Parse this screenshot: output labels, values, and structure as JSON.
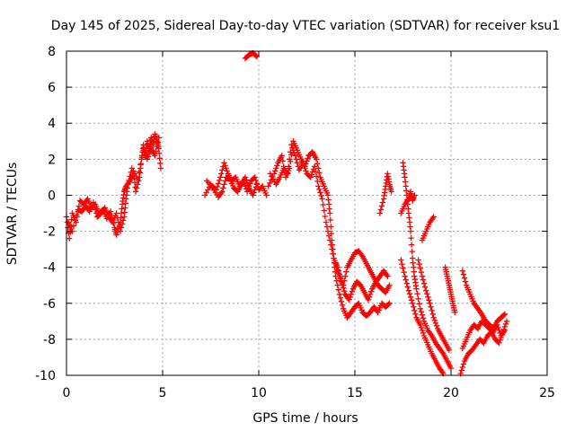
{
  "chart_data": {
    "type": "scatter",
    "title": "Day 145 of 2025, Sidereal Day-to-day VTEC variation (SDTVAR) for receiver ksu1",
    "xlabel": "GPS time / hours",
    "ylabel": "SDTVAR / TECUs",
    "xlim": [
      0,
      25
    ],
    "ylim": [
      -10,
      8
    ],
    "xticks": [
      0,
      5,
      10,
      15,
      20,
      25
    ],
    "yticks": [
      -10,
      -8,
      -6,
      -4,
      -2,
      0,
      2,
      4,
      6,
      8
    ],
    "grid": true,
    "marker": "+",
    "color": "#ff0000",
    "series": [
      {
        "name": "SDTVAR trace A",
        "points": [
          [
            0.0,
            -1.2
          ],
          [
            0.15,
            -2.4
          ],
          [
            0.3,
            -1.0
          ],
          [
            0.5,
            -1.5
          ],
          [
            0.7,
            -0.3
          ],
          [
            0.9,
            -0.5
          ],
          [
            1.1,
            -0.2
          ],
          [
            1.3,
            -0.7
          ],
          [
            1.5,
            -0.5
          ],
          [
            1.7,
            -1.0
          ],
          [
            1.9,
            -0.8
          ],
          [
            2.1,
            -1.3
          ],
          [
            2.3,
            -0.9
          ],
          [
            2.5,
            -1.8
          ],
          [
            2.6,
            -2.2
          ],
          [
            2.8,
            -1.5
          ],
          [
            2.9,
            -0.5
          ],
          [
            3.0,
            0.2
          ],
          [
            3.1,
            0.5
          ],
          [
            3.3,
            0.8
          ],
          [
            3.5,
            1.2
          ],
          [
            3.6,
            0.2
          ],
          [
            3.8,
            1.0
          ],
          [
            3.9,
            2.0
          ],
          [
            4.0,
            2.8
          ],
          [
            4.1,
            2.2
          ],
          [
            4.2,
            3.0
          ],
          [
            4.3,
            2.5
          ],
          [
            4.4,
            3.2
          ],
          [
            4.5,
            2.8
          ],
          [
            4.6,
            3.4
          ],
          [
            4.7,
            3.0
          ],
          [
            4.8,
            2.6
          ],
          [
            4.9,
            1.5
          ]
        ]
      },
      {
        "name": "SDTVAR trace B",
        "points": [
          [
            0.1,
            -1.5
          ],
          [
            0.3,
            -2.0
          ],
          [
            0.6,
            -0.8
          ],
          [
            0.8,
            -0.9
          ],
          [
            1.0,
            -0.6
          ],
          [
            1.2,
            -0.9
          ],
          [
            1.4,
            -0.4
          ],
          [
            1.6,
            -1.2
          ],
          [
            1.8,
            -1.0
          ],
          [
            2.0,
            -0.7
          ],
          [
            2.2,
            -1.2
          ],
          [
            2.4,
            -1.5
          ],
          [
            2.6,
            -1.0
          ],
          [
            2.8,
            -2.0
          ],
          [
            3.0,
            -1.2
          ],
          [
            3.1,
            -0.2
          ],
          [
            3.2,
            0.6
          ],
          [
            3.4,
            1.5
          ],
          [
            3.7,
            0.9
          ],
          [
            4.0,
            2.5
          ],
          [
            4.2,
            2.0
          ],
          [
            4.4,
            2.6
          ],
          [
            4.6,
            2.2
          ],
          [
            4.8,
            3.2
          ]
        ]
      },
      {
        "name": "SDTVAR trace C",
        "points": [
          [
            7.2,
            0.0
          ],
          [
            7.5,
            0.6
          ],
          [
            7.8,
            0.3
          ],
          [
            8.0,
            1.0
          ],
          [
            8.2,
            1.8
          ],
          [
            8.4,
            1.2
          ],
          [
            8.6,
            0.8
          ],
          [
            8.8,
            1.0
          ],
          [
            9.0,
            0.5
          ],
          [
            9.2,
            0.8
          ],
          [
            9.4,
            0.2
          ],
          [
            9.6,
            0.8
          ],
          [
            9.8,
            1.0
          ],
          [
            10.0,
            0.3
          ],
          [
            10.2,
            0.5
          ],
          [
            10.4,
            0.0
          ]
        ]
      },
      {
        "name": "SDTVAR trace D",
        "points": [
          [
            7.3,
            0.8
          ],
          [
            7.6,
            0.4
          ],
          [
            7.9,
            -0.1
          ],
          [
            8.1,
            0.2
          ],
          [
            8.3,
            1.0
          ],
          [
            8.5,
            0.9
          ],
          [
            8.7,
            0.4
          ],
          [
            8.9,
            0.2
          ],
          [
            9.1,
            0.6
          ],
          [
            9.3,
            1.0
          ],
          [
            9.5,
            0.4
          ],
          [
            9.7,
            0.0
          ],
          [
            9.9,
            0.6
          ]
        ]
      },
      {
        "name": "SDTVAR trace E",
        "points": [
          [
            9.3,
            7.6
          ],
          [
            9.5,
            7.8
          ],
          [
            9.7,
            7.9
          ],
          [
            9.9,
            7.7
          ]
        ]
      },
      {
        "name": "SDTVAR trace F",
        "points": [
          [
            10.5,
            0.5
          ],
          [
            10.8,
            1.2
          ],
          [
            11.0,
            1.8
          ],
          [
            11.2,
            2.2
          ],
          [
            11.4,
            1.0
          ],
          [
            11.6,
            1.5
          ],
          [
            11.8,
            3.0
          ],
          [
            12.0,
            2.5
          ],
          [
            12.2,
            2.0
          ],
          [
            12.4,
            1.6
          ],
          [
            12.6,
            2.2
          ],
          [
            12.8,
            2.4
          ],
          [
            13.0,
            2.0
          ],
          [
            13.2,
            1.0
          ],
          [
            13.4,
            0.5
          ],
          [
            13.6,
            0.0
          ],
          [
            13.7,
            -1.0
          ],
          [
            13.8,
            -2.5
          ],
          [
            13.9,
            -3.5
          ],
          [
            14.0,
            -4.5
          ],
          [
            14.2,
            -5.5
          ],
          [
            14.4,
            -6.3
          ],
          [
            14.6,
            -6.8
          ],
          [
            14.8,
            -6.5
          ],
          [
            15.0,
            -6.2
          ],
          [
            15.2,
            -6.0
          ],
          [
            15.4,
            -6.5
          ],
          [
            15.6,
            -6.7
          ],
          [
            15.8,
            -6.5
          ],
          [
            16.0,
            -6.2
          ],
          [
            16.2,
            -6.5
          ],
          [
            16.4,
            -6.0
          ],
          [
            16.6,
            -6.2
          ],
          [
            16.8,
            -6.0
          ]
        ]
      },
      {
        "name": "SDTVAR trace G",
        "points": [
          [
            10.6,
            1.2
          ],
          [
            10.9,
            0.6
          ],
          [
            11.1,
            1.0
          ],
          [
            11.3,
            1.5
          ],
          [
            11.5,
            1.2
          ],
          [
            11.7,
            2.8
          ],
          [
            11.9,
            2.2
          ],
          [
            12.1,
            1.4
          ],
          [
            12.3,
            1.8
          ],
          [
            12.5,
            1.2
          ],
          [
            12.7,
            1.0
          ],
          [
            12.9,
            1.6
          ],
          [
            13.1,
            0.5
          ],
          [
            13.3,
            -0.2
          ],
          [
            13.5,
            -1.5
          ],
          [
            13.7,
            -2.5
          ],
          [
            13.9,
            -3.5
          ],
          [
            14.1,
            -4.0
          ],
          [
            14.3,
            -4.8
          ],
          [
            14.5,
            -5.5
          ],
          [
            14.7,
            -5.8
          ],
          [
            14.9,
            -5.2
          ],
          [
            15.1,
            -4.8
          ],
          [
            15.3,
            -5.0
          ],
          [
            15.5,
            -5.4
          ],
          [
            15.7,
            -5.8
          ],
          [
            15.9,
            -5.2
          ],
          [
            16.1,
            -4.8
          ],
          [
            16.3,
            -4.5
          ],
          [
            16.5,
            -4.2
          ],
          [
            16.7,
            -4.5
          ]
        ]
      },
      {
        "name": "SDTVAR trace H",
        "points": [
          [
            14.0,
            -3.8
          ],
          [
            14.2,
            -4.5
          ],
          [
            14.4,
            -5.0
          ],
          [
            14.6,
            -4.0
          ],
          [
            14.8,
            -3.6
          ],
          [
            15.0,
            -3.2
          ],
          [
            15.2,
            -3.1
          ],
          [
            15.4,
            -3.4
          ],
          [
            15.6,
            -3.8
          ],
          [
            15.8,
            -4.2
          ],
          [
            16.0,
            -4.6
          ],
          [
            16.2,
            -5.0
          ],
          [
            16.4,
            -5.2
          ],
          [
            16.6,
            -5.4
          ],
          [
            16.8,
            -5.0
          ]
        ]
      },
      {
        "name": "SDTVAR trace I",
        "points": [
          [
            16.3,
            -1.0
          ],
          [
            16.5,
            -0.2
          ],
          [
            16.6,
            0.5
          ],
          [
            16.7,
            1.2
          ],
          [
            16.8,
            0.6
          ],
          [
            16.9,
            0.2
          ]
        ]
      },
      {
        "name": "SDTVAR trace J",
        "points": [
          [
            17.4,
            -1.0
          ],
          [
            17.6,
            -0.5
          ],
          [
            17.8,
            -0.2
          ],
          [
            17.9,
            0.2
          ],
          [
            18.0,
            -0.3
          ],
          [
            18.1,
            0.0
          ]
        ]
      },
      {
        "name": "SDTVAR trace K",
        "points": [
          [
            17.5,
            1.8
          ],
          [
            17.6,
            1.0
          ],
          [
            17.7,
            0.0
          ],
          [
            17.8,
            -1.0
          ],
          [
            17.9,
            -2.0
          ],
          [
            18.0,
            -3.5
          ],
          [
            18.1,
            -4.5
          ],
          [
            18.2,
            -5.2
          ],
          [
            18.4,
            -6.3
          ],
          [
            18.6,
            -7.0
          ],
          [
            18.8,
            -7.5
          ],
          [
            19.0,
            -7.8
          ],
          [
            19.2,
            -8.2
          ],
          [
            19.4,
            -8.5
          ],
          [
            19.6,
            -8.8
          ],
          [
            19.8,
            -9.2
          ],
          [
            20.0,
            -9.6
          ]
        ]
      },
      {
        "name": "SDTVAR trace L",
        "points": [
          [
            17.4,
            -3.6
          ],
          [
            17.6,
            -4.5
          ],
          [
            17.8,
            -5.3
          ],
          [
            18.0,
            -6.0
          ],
          [
            18.2,
            -6.8
          ],
          [
            18.4,
            -7.2
          ],
          [
            18.6,
            -7.8
          ],
          [
            18.8,
            -8.3
          ],
          [
            19.0,
            -8.8
          ],
          [
            19.2,
            -9.2
          ],
          [
            19.4,
            -9.6
          ],
          [
            19.6,
            -9.9
          ]
        ]
      },
      {
        "name": "SDTVAR trace M",
        "points": [
          [
            18.3,
            -3.6
          ],
          [
            18.5,
            -4.5
          ],
          [
            18.7,
            -5.3
          ],
          [
            18.9,
            -6.0
          ],
          [
            19.1,
            -6.8
          ],
          [
            19.3,
            -7.4
          ],
          [
            19.5,
            -7.8
          ],
          [
            19.7,
            -8.2
          ],
          [
            19.9,
            -8.6
          ]
        ]
      },
      {
        "name": "SDTVAR trace N",
        "points": [
          [
            18.5,
            -2.5
          ],
          [
            18.7,
            -2.0
          ],
          [
            18.9,
            -1.5
          ],
          [
            19.1,
            -1.2
          ]
        ]
      },
      {
        "name": "SDTVAR trace O",
        "points": [
          [
            19.7,
            -4.0
          ],
          [
            19.8,
            -4.5
          ],
          [
            19.9,
            -5.0
          ],
          [
            20.0,
            -5.5
          ],
          [
            20.1,
            -6.0
          ],
          [
            20.2,
            -6.5
          ]
        ]
      },
      {
        "name": "SDTVAR trace P",
        "points": [
          [
            20.6,
            -4.2
          ],
          [
            20.8,
            -5.0
          ],
          [
            21.0,
            -5.5
          ],
          [
            21.2,
            -6.0
          ],
          [
            21.4,
            -6.3
          ],
          [
            21.6,
            -6.6
          ],
          [
            21.8,
            -7.0
          ],
          [
            22.0,
            -7.2
          ],
          [
            22.2,
            -7.4
          ],
          [
            22.4,
            -7.0
          ],
          [
            22.6,
            -6.8
          ],
          [
            22.8,
            -6.6
          ]
        ]
      },
      {
        "name": "SDTVAR trace Q",
        "points": [
          [
            20.6,
            -8.5
          ],
          [
            20.8,
            -8.0
          ],
          [
            21.0,
            -7.5
          ],
          [
            21.2,
            -7.2
          ],
          [
            21.4,
            -7.4
          ],
          [
            21.6,
            -7.0
          ],
          [
            21.8,
            -7.2
          ],
          [
            22.0,
            -7.4
          ],
          [
            22.2,
            -7.6
          ],
          [
            22.4,
            -7.2
          ],
          [
            22.6,
            -7.8
          ],
          [
            22.8,
            -7.5
          ]
        ]
      },
      {
        "name": "SDTVAR trace R",
        "points": [
          [
            20.5,
            -9.9
          ],
          [
            20.7,
            -9.2
          ],
          [
            20.9,
            -8.8
          ],
          [
            21.1,
            -8.6
          ],
          [
            21.3,
            -8.3
          ],
          [
            21.5,
            -8.0
          ],
          [
            21.7,
            -8.2
          ],
          [
            21.9,
            -7.8
          ],
          [
            22.1,
            -7.6
          ],
          [
            22.3,
            -8.0
          ],
          [
            22.5,
            -8.2
          ],
          [
            22.7,
            -7.6
          ],
          [
            22.9,
            -7.0
          ]
        ]
      }
    ]
  }
}
